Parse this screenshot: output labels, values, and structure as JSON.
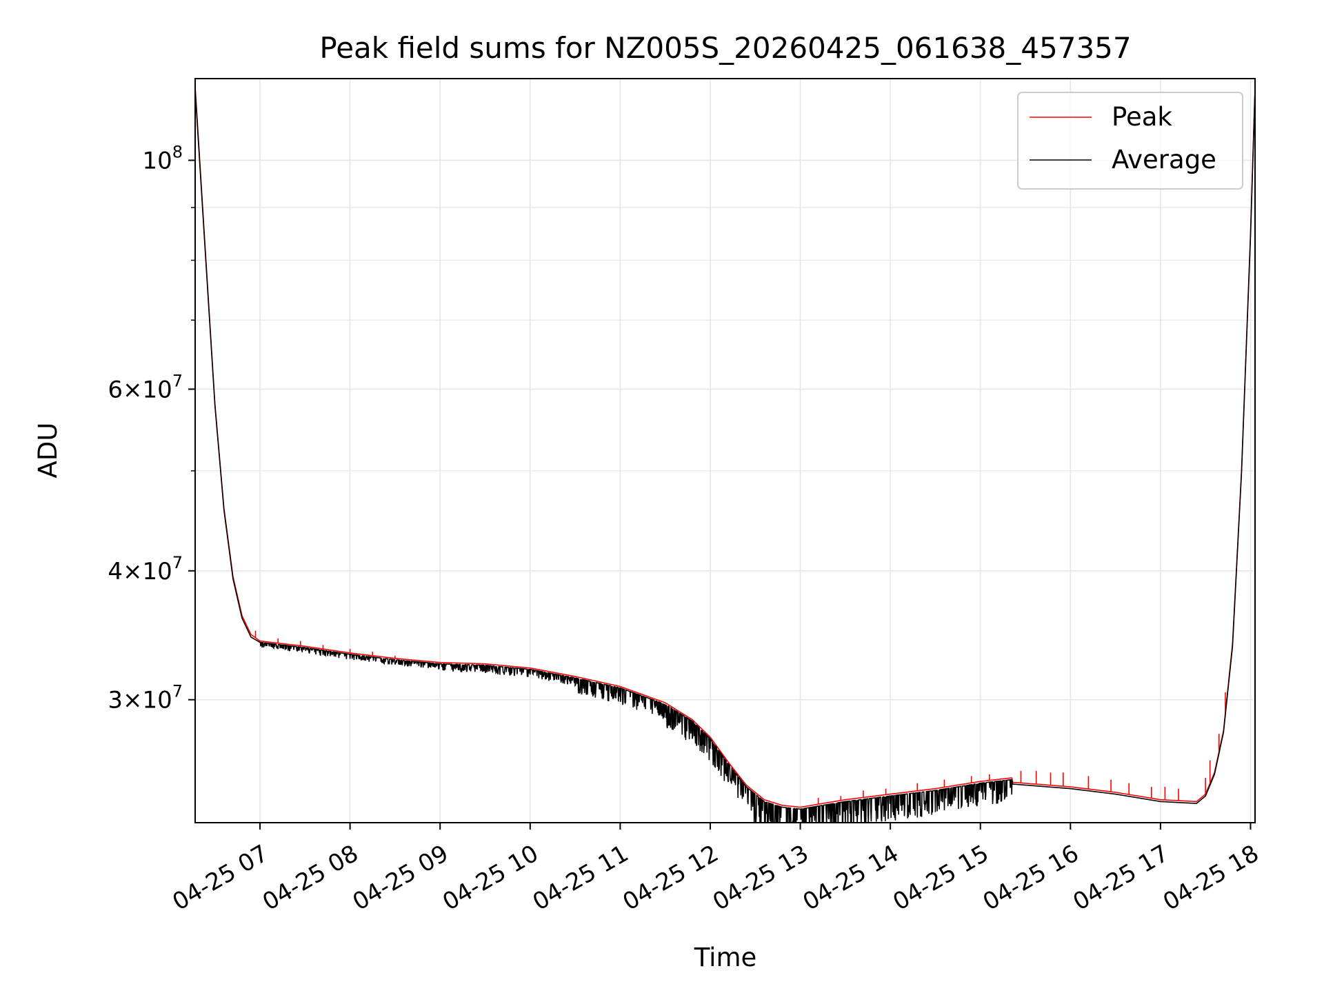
{
  "chart_data": {
    "type": "line",
    "title": "Peak field sums for NZ005S_20260425_061638_457357",
    "xlabel": "Time",
    "ylabel": "ADU",
    "yscale": "log",
    "grid": true,
    "legend_position": "top-right",
    "x_unit": "hours since 2026-04-25 00:00",
    "xlim": [
      6.28,
      18.05
    ],
    "ylim": [
      22800000,
      120000000
    ],
    "x_ticks": [
      {
        "value": 7,
        "label": "04-25 07"
      },
      {
        "value": 8,
        "label": "04-25 08"
      },
      {
        "value": 9,
        "label": "04-25 09"
      },
      {
        "value": 10,
        "label": "04-25 10"
      },
      {
        "value": 11,
        "label": "04-25 11"
      },
      {
        "value": 12,
        "label": "04-25 12"
      },
      {
        "value": 13,
        "label": "04-25 13"
      },
      {
        "value": 14,
        "label": "04-25 14"
      },
      {
        "value": 15,
        "label": "04-25 15"
      },
      {
        "value": 16,
        "label": "04-25 16"
      },
      {
        "value": 17,
        "label": "04-25 17"
      },
      {
        "value": 18,
        "label": "04-25 18"
      }
    ],
    "y_major_ticks": [
      {
        "value": 100000000,
        "mantissa": "",
        "exponent": "8"
      },
      {
        "value": 60000000,
        "mantissa": "6",
        "exponent": "7"
      },
      {
        "value": 40000000,
        "mantissa": "4",
        "exponent": "7"
      },
      {
        "value": 30000000,
        "mantissa": "3",
        "exponent": "7"
      }
    ],
    "y_minor_ticks": [
      90000000,
      80000000,
      70000000,
      50000000
    ],
    "series": [
      {
        "name": "Peak",
        "color": "#ff0000",
        "points": [
          [
            6.28,
            118000000
          ],
          [
            6.4,
            80000000
          ],
          [
            6.5,
            58000000
          ],
          [
            6.6,
            46000000
          ],
          [
            6.7,
            39500000
          ],
          [
            6.8,
            36200000
          ],
          [
            6.9,
            34700000
          ],
          [
            7.0,
            34200000
          ],
          [
            7.5,
            33800000
          ],
          [
            8.0,
            33300000
          ],
          [
            8.5,
            32900000
          ],
          [
            9.0,
            32600000
          ],
          [
            9.5,
            32500000
          ],
          [
            10.0,
            32200000
          ],
          [
            10.5,
            31600000
          ],
          [
            11.0,
            30900000
          ],
          [
            11.5,
            29800000
          ],
          [
            11.8,
            28700000
          ],
          [
            12.0,
            27600000
          ],
          [
            12.2,
            26100000
          ],
          [
            12.4,
            24800000
          ],
          [
            12.6,
            24000000
          ],
          [
            12.8,
            23700000
          ],
          [
            13.0,
            23600000
          ],
          [
            13.5,
            24000000
          ],
          [
            14.0,
            24300000
          ],
          [
            14.5,
            24600000
          ],
          [
            15.0,
            25000000
          ],
          [
            15.35,
            25200000
          ],
          [
            15.36,
            24950000
          ],
          [
            16.0,
            24700000
          ],
          [
            16.5,
            24400000
          ],
          [
            17.0,
            24000000
          ],
          [
            17.4,
            23900000
          ],
          [
            17.5,
            24300000
          ],
          [
            17.6,
            25500000
          ],
          [
            17.7,
            28000000
          ],
          [
            17.8,
            34000000
          ],
          [
            17.9,
            50000000
          ],
          [
            18.0,
            85000000
          ],
          [
            18.05,
            118000000
          ]
        ],
        "spikes_up": [
          [
            6.95,
            35000000
          ],
          [
            7.2,
            34400000
          ],
          [
            7.45,
            34200000
          ],
          [
            7.7,
            33900000
          ],
          [
            8.0,
            33600000
          ],
          [
            8.25,
            33400000
          ],
          [
            8.5,
            33100000
          ],
          [
            13.2,
            24100000
          ],
          [
            13.45,
            24200000
          ],
          [
            13.7,
            24500000
          ],
          [
            13.95,
            24600000
          ],
          [
            14.3,
            24900000
          ],
          [
            14.6,
            25100000
          ],
          [
            14.9,
            25300000
          ],
          [
            15.1,
            25400000
          ],
          [
            15.45,
            25600000
          ],
          [
            15.62,
            25600000
          ],
          [
            15.78,
            25500000
          ],
          [
            15.92,
            25500000
          ],
          [
            16.2,
            25300000
          ],
          [
            16.45,
            25100000
          ],
          [
            16.65,
            24900000
          ],
          [
            16.9,
            24700000
          ],
          [
            17.05,
            24700000
          ],
          [
            17.2,
            24600000
          ],
          [
            17.5,
            25200000
          ],
          [
            17.55,
            26200000
          ],
          [
            17.65,
            27800000
          ],
          [
            17.72,
            30500000
          ]
        ]
      },
      {
        "name": "Average",
        "color": "#000000",
        "points": [
          [
            6.28,
            117000000
          ],
          [
            6.4,
            79500000
          ],
          [
            6.5,
            57800000
          ],
          [
            6.6,
            45800000
          ],
          [
            6.7,
            39300000
          ],
          [
            6.8,
            36000000
          ],
          [
            6.9,
            34500000
          ],
          [
            7.0,
            34100000
          ],
          [
            7.5,
            33700000
          ],
          [
            8.0,
            33200000
          ],
          [
            8.5,
            32800000
          ],
          [
            9.0,
            32500000
          ],
          [
            9.5,
            32400000
          ],
          [
            10.0,
            32100000
          ],
          [
            10.5,
            31500000
          ],
          [
            11.0,
            30800000
          ],
          [
            11.5,
            29700000
          ],
          [
            11.8,
            28600000
          ],
          [
            12.0,
            27500000
          ],
          [
            12.2,
            26000000
          ],
          [
            12.4,
            24700000
          ],
          [
            12.6,
            23900000
          ],
          [
            12.8,
            23600000
          ],
          [
            13.0,
            23500000
          ],
          [
            13.5,
            23900000
          ],
          [
            14.0,
            24200000
          ],
          [
            14.5,
            24500000
          ],
          [
            15.0,
            24900000
          ],
          [
            15.35,
            25100000
          ],
          [
            15.36,
            24850000
          ],
          [
            16.0,
            24600000
          ],
          [
            16.5,
            24300000
          ],
          [
            17.0,
            23900000
          ],
          [
            17.4,
            23800000
          ],
          [
            17.5,
            24200000
          ],
          [
            17.6,
            25400000
          ],
          [
            17.7,
            27900000
          ],
          [
            17.8,
            33800000
          ],
          [
            17.9,
            49800000
          ],
          [
            18.0,
            84500000
          ],
          [
            18.05,
            117000000
          ]
        ],
        "noise_band": {
          "description": "dense downward dropouts below the average curve",
          "ranges": [
            [
              7.0,
              9.0,
              0.012
            ],
            [
              9.0,
              10.5,
              0.018
            ],
            [
              10.5,
              11.5,
              0.035
            ],
            [
              11.5,
              12.4,
              0.05
            ],
            [
              12.4,
              13.0,
              0.07
            ],
            [
              13.0,
              13.6,
              0.07
            ],
            [
              13.6,
              14.5,
              0.055
            ],
            [
              14.5,
              15.35,
              0.05
            ]
          ]
        }
      }
    ]
  }
}
